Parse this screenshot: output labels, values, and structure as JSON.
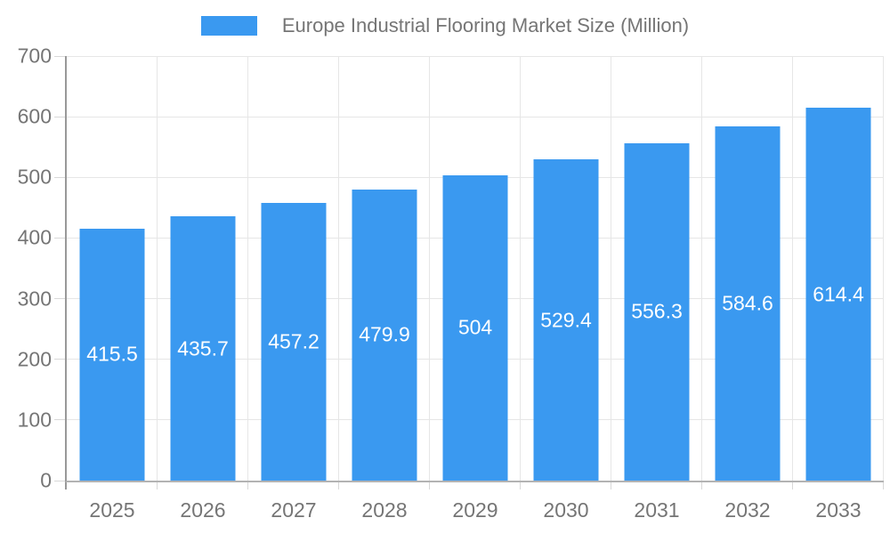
{
  "legend": {
    "title": "Europe Industrial Flooring Market Size (Million)"
  },
  "chart_data": {
    "type": "bar",
    "title": "Europe Industrial Flooring Market Size (Million)",
    "categories": [
      "2025",
      "2026",
      "2027",
      "2028",
      "2029",
      "2030",
      "2031",
      "2032",
      "2033"
    ],
    "values": [
      415.5,
      435.7,
      457.2,
      479.9,
      504,
      529.4,
      556.3,
      584.6,
      614.4
    ],
    "value_labels": [
      "415.5",
      "435.7",
      "457.2",
      "479.9",
      "504",
      "529.4",
      "556.3",
      "584.6",
      "614.4"
    ],
    "xlabel": "",
    "ylabel": "",
    "ylim": [
      0,
      700
    ],
    "yticks": [
      0,
      100,
      200,
      300,
      400,
      500,
      600,
      700
    ],
    "grid": true,
    "legend_position": "top",
    "bar_label_position": "inside-center"
  },
  "colors": {
    "bar": "#3a99f0",
    "grid": "#e6e6e6",
    "axis_left": "#999999",
    "axis_bottom": "#b3b3b3",
    "tick": "#d8d8d8",
    "label_text": "#757575",
    "bar_label_text": "#ffffff",
    "background": "#ffffff"
  }
}
